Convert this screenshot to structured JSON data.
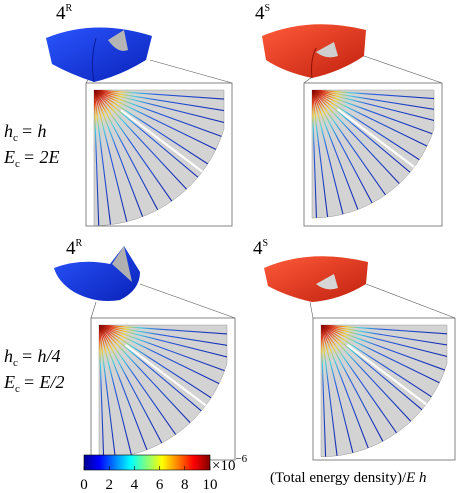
{
  "panels": [
    {
      "number": "4",
      "superscript": "R"
    },
    {
      "number": "4",
      "superscript": "S"
    },
    {
      "number": "4",
      "superscript": "R"
    },
    {
      "number": "4",
      "superscript": "S"
    }
  ],
  "row_labels": [
    {
      "line1": {
        "symbol": "h",
        "subscript": "c",
        "rhs": "= h"
      },
      "line2": {
        "symbol": "E",
        "subscript": "c",
        "rhs": "= 2E"
      }
    },
    {
      "line1": {
        "symbol": "h",
        "subscript": "c",
        "rhs": "= h/4"
      },
      "line2": {
        "symbol": "E",
        "subscript": "c",
        "rhs": "= E/2"
      }
    }
  ],
  "colorbar": {
    "lim": [
      0,
      10
    ],
    "ticks": [
      0,
      2,
      4,
      6,
      8,
      10
    ],
    "multiplier": "×10",
    "exponent": "−6",
    "label": "(Total energy density)/",
    "label_symbols": "E h"
  }
}
